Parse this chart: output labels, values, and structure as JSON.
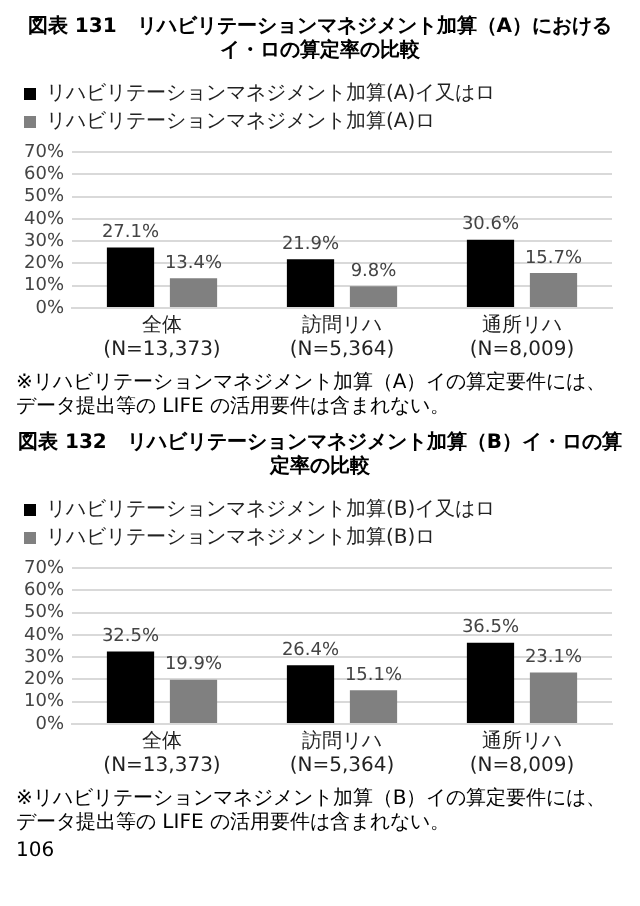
{
  "chart_data": [
    {
      "type": "bar",
      "title": "図表 131　リハビリテーションマネジメント加算（A）におけるイ・ロの算定率の比較",
      "categories": [
        "全体(N=13,373)",
        "訪問リハ(N=5,364)",
        "通所リハ(N=8,009)"
      ],
      "series": [
        {
          "name": "リハビリテーションマネジメント加算(A)イ又はロ",
          "color": "#000000",
          "values": [
            27.1,
            21.9,
            30.6
          ],
          "value_labels": [
            "27.1%",
            "21.9%",
            "30.6%"
          ]
        },
        {
          "name": "リハビリテーションマネジメント加算(A)ロ",
          "color": "#808080",
          "values": [
            13.4,
            9.8,
            15.7
          ],
          "value_labels": [
            "13.4%",
            "9.8%",
            "15.7%"
          ]
        }
      ],
      "ylim": [
        0,
        70
      ],
      "yticks": [
        {
          "value": 0,
          "label": "0%"
        },
        {
          "value": 10,
          "label": "10%"
        },
        {
          "value": 20,
          "label": "20%"
        },
        {
          "value": 30,
          "label": "30%"
        },
        {
          "value": 40,
          "label": "40%"
        },
        {
          "value": 50,
          "label": "50%"
        },
        {
          "value": 60,
          "label": "60%"
        },
        {
          "value": 70,
          "label": "70%"
        }
      ],
      "grid": "y",
      "legend": "top",
      "annotations": [
        "※リハビリテーションマネジメント加算（A）イの算定要件には、データ提出等の LIFE の活用要件は含まれない。"
      ]
    },
    {
      "type": "bar",
      "title": "図表 132　リハビリテーションマネジメント加算（B）イ・ロの算定率の比較",
      "categories": [
        "全体(N=13,373)",
        "訪問リハ(N=5,364)",
        "通所リハ(N=8,009)"
      ],
      "series": [
        {
          "name": "リハビリテーションマネジメント加算(B)イ又はロ",
          "color": "#000000",
          "values": [
            32.5,
            26.4,
            36.5
          ],
          "value_labels": [
            "32.5%",
            "26.4%",
            "36.5%"
          ]
        },
        {
          "name": "リハビリテーションマネジメント加算(B)ロ",
          "color": "#808080",
          "values": [
            19.9,
            15.1,
            23.1
          ],
          "value_labels": [
            "19.9%",
            "15.1%",
            "23.1%"
          ]
        }
      ],
      "ylim": [
        0,
        70
      ],
      "yticks": [
        {
          "value": 0,
          "label": "0%"
        },
        {
          "value": 10,
          "label": "10%"
        },
        {
          "value": 20,
          "label": "20%"
        },
        {
          "value": 30,
          "label": "30%"
        },
        {
          "value": 40,
          "label": "40%"
        },
        {
          "value": 50,
          "label": "50%"
        },
        {
          "value": 60,
          "label": "60%"
        },
        {
          "value": 70,
          "label": "70%"
        }
      ],
      "grid": "y",
      "legend": "top",
      "annotations": [
        "※リハビリテーションマネジメント加算（B）イの算定要件には、データ提出等の LIFE の活用要件は含まれない。",
        "106"
      ]
    }
  ]
}
